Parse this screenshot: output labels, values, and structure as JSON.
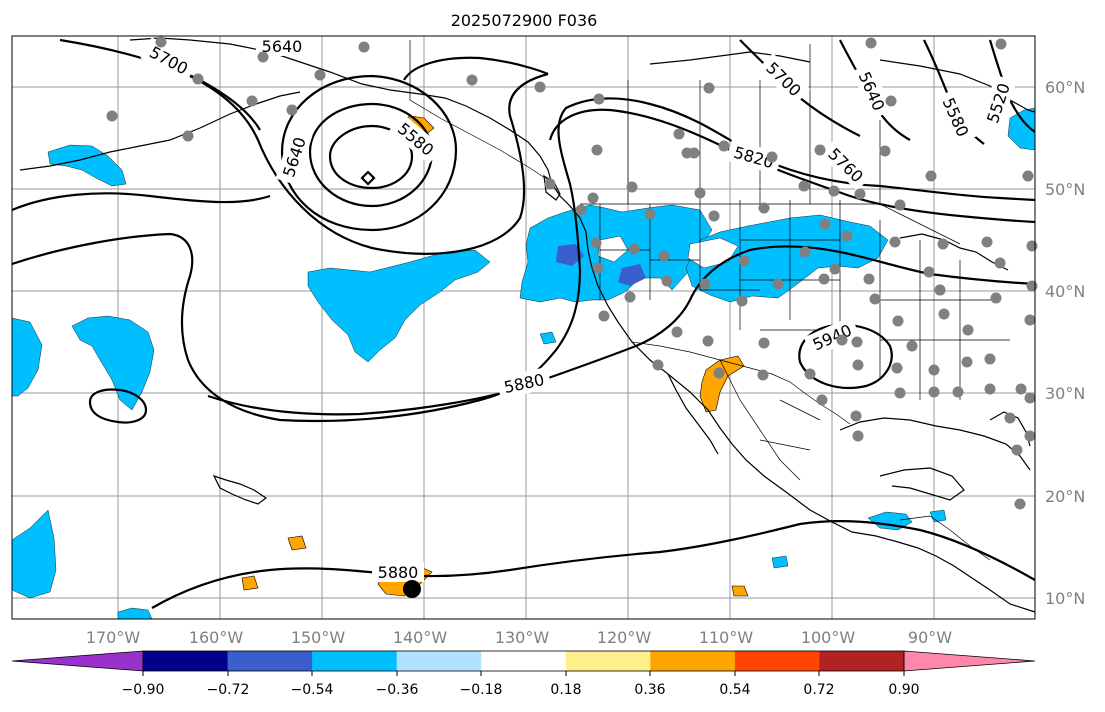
{
  "title": "2025072900 F036",
  "lon_labels": [
    "170°W",
    "160°W",
    "150°W",
    "140°W",
    "130°W",
    "120°W",
    "110°W",
    "100°W",
    "90°W"
  ],
  "lat_labels": [
    "60°N",
    "50°N",
    "40°N",
    "30°N",
    "20°N",
    "10°N"
  ],
  "contour_labels": [
    "5640",
    "5700",
    "5640",
    "5580",
    "5700",
    "5640",
    "5580",
    "5520",
    "5820",
    "5760",
    "5940",
    "5880",
    "5880"
  ],
  "colorbar": {
    "colors": [
      "#9932cc",
      "#00008b",
      "#3a5fcd",
      "#00bfff",
      "#b0e2ff",
      "#ffffff",
      "#fff08c",
      "#ffa500",
      "#ff4500",
      "#b22222",
      "#ff88aa"
    ],
    "tick_labels": [
      "−0.90",
      "−0.72",
      "−0.54",
      "−0.36",
      "−0.18",
      "0.18",
      "0.36",
      "0.54",
      "0.72",
      "0.90"
    ]
  }
}
